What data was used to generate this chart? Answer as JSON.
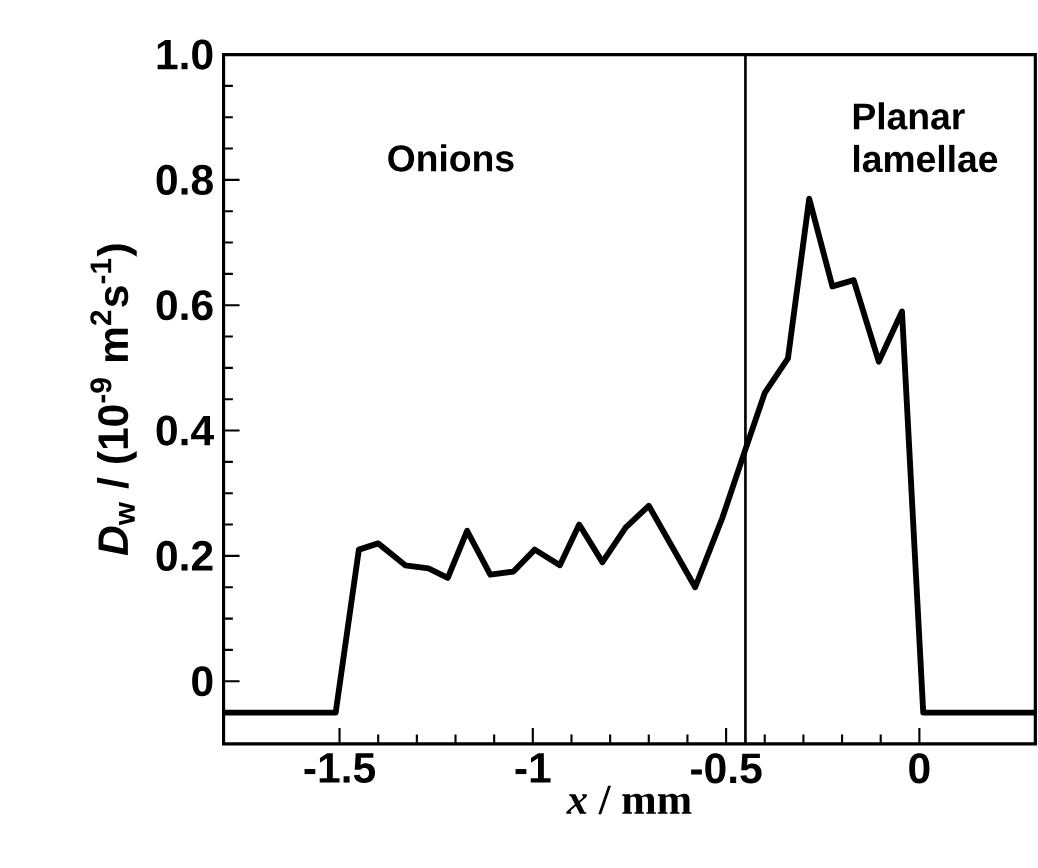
{
  "chart_data": {
    "type": "line",
    "xlabel": "*x* / mm",
    "ylabel": "*D*$_{w}$ / (10$^{-9}$ m$^{2}$s$^{-1}$)",
    "x": [
      -1.8,
      -1.51,
      -1.45,
      -1.4,
      -1.33,
      -1.27,
      -1.22,
      -1.17,
      -1.11,
      -1.05,
      -0.995,
      -0.93,
      -0.88,
      -0.82,
      -0.76,
      -0.7,
      -0.58,
      -0.51,
      -0.45,
      -0.4,
      -0.34,
      -0.285,
      -0.225,
      -0.17,
      -0.105,
      -0.045,
      0.01,
      0.3
    ],
    "series": [
      {
        "color": "#000000",
        "values": [
          -0.05,
          -0.05,
          0.21,
          0.22,
          0.185,
          0.18,
          0.165,
          0.24,
          0.17,
          0.175,
          0.21,
          0.185,
          0.25,
          0.19,
          0.245,
          0.28,
          0.15,
          0.26,
          0.37,
          0.46,
          0.515,
          0.77,
          0.63,
          0.64,
          0.51,
          0.59,
          -0.05,
          -0.05
        ]
      }
    ],
    "xlim": [
      -1.8,
      0.3
    ],
    "ylim": [
      -0.1,
      1.0
    ],
    "xticks": [
      -1.5,
      -1,
      -0.5,
      0
    ],
    "yticks": [
      0,
      0.2,
      0.4,
      0.6,
      0.8,
      {
        "value": 1.0,
        "label": "1.0"
      }
    ],
    "ref_lines": [
      {
        "axis": "x",
        "value": -0.45,
        "color": "#000000"
      }
    ],
    "annotations": [
      "Onions",
      "Planar lamellae"
    ],
    "grid": false,
    "marker": "none",
    "line_style": "solid"
  }
}
